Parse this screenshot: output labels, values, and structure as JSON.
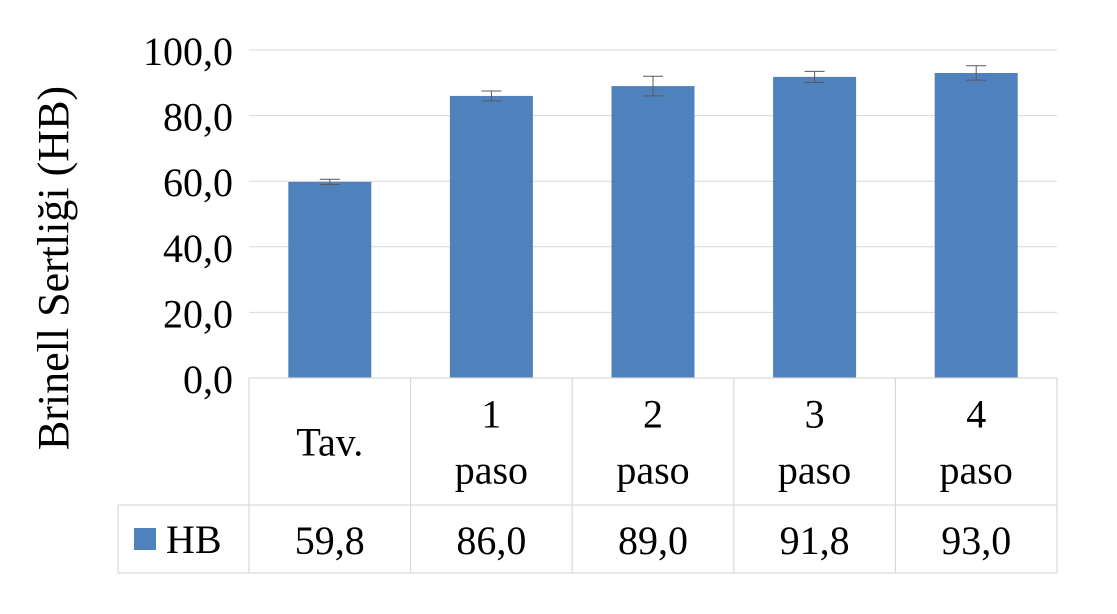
{
  "chart_data": {
    "type": "bar",
    "title": "",
    "ylabel": "Brinell Sertliği (HB)",
    "xlabel": "",
    "ylim": [
      0,
      100
    ],
    "yticks": [
      0,
      20,
      40,
      60,
      80,
      100
    ],
    "ytick_labels": [
      "0,0",
      "20,0",
      "40,0",
      "60,0",
      "80,0",
      "100,0"
    ],
    "categories": [
      [
        "Tav."
      ],
      [
        "1",
        "paso"
      ],
      [
        "2",
        "paso"
      ],
      [
        "3",
        "paso"
      ],
      [
        "4",
        "paso"
      ]
    ],
    "series": [
      {
        "name": "HB",
        "color": "#4f81bd",
        "values": [
          59.8,
          86.0,
          89.0,
          91.8,
          93.0
        ],
        "value_labels": [
          "59,8",
          "86,0",
          "89,0",
          "91,8",
          "93,0"
        ],
        "error": [
          0.8,
          1.5,
          3.0,
          1.7,
          2.2
        ]
      }
    ],
    "grid": true,
    "legend": "data-table-left",
    "data_table": true,
    "colors": {
      "bar": "#4f81bd",
      "grid": "#d9d9d9",
      "error_bar": "#595959",
      "background": "#ffffff"
    }
  }
}
